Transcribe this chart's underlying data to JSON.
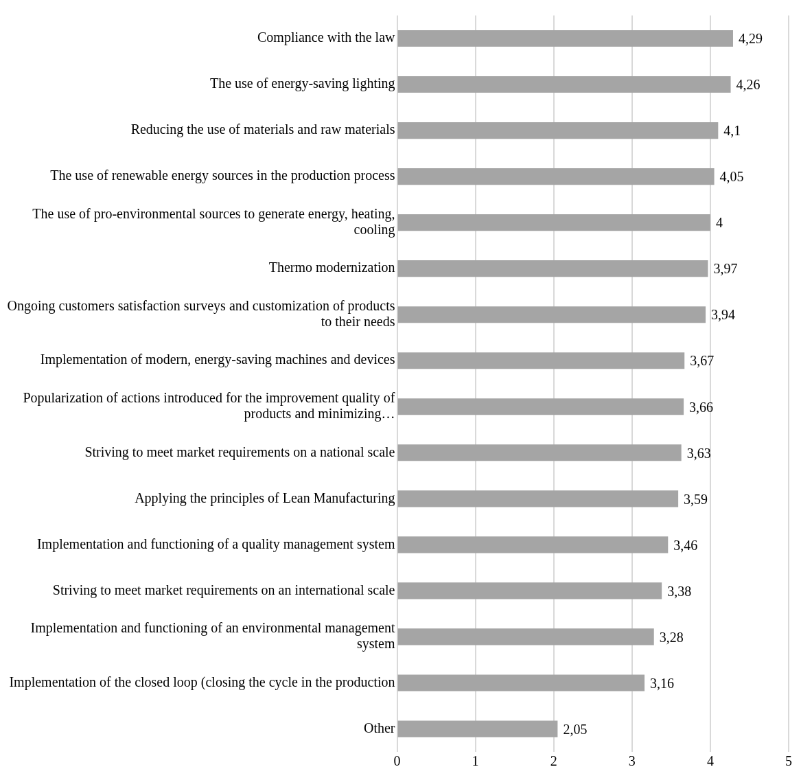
{
  "chart_data": {
    "type": "bar",
    "orientation": "horizontal",
    "categories": [
      "Compliance with the law",
      "The use of energy-saving lighting",
      "Reducing the use of materials and raw materials",
      "The use of renewable energy sources in the production process",
      "The use of pro-environmental sources to generate energy, heating, cooling",
      "Thermo modernization",
      "Ongoing customers satisfaction surveys and customization of products to their needs",
      "Implementation of modern, energy-saving machines and devices",
      "Popularization of actions introduced for the improvement quality of products and minimizing…",
      "Striving to meet market requirements on a national scale",
      "Applying the principles of Lean Manufacturing",
      "Implementation and functioning of a quality management system",
      "Striving to meet market requirements on an international scale",
      "Implementation and functioning of an environmental management system",
      "Implementation of the closed loop (closing the cycle in the production",
      "Other"
    ],
    "values": [
      4.29,
      4.26,
      4.1,
      4.05,
      4,
      3.97,
      3.94,
      3.67,
      3.66,
      3.63,
      3.59,
      3.46,
      3.38,
      3.28,
      3.16,
      2.05
    ],
    "value_labels": [
      "4,29",
      "4,26",
      "4,1",
      "4,05",
      "4",
      "3,97",
      "3,94",
      "3,67",
      "3,66",
      "3,63",
      "3,59",
      "3,46",
      "3,38",
      "3,28",
      "3,16",
      "2,05"
    ],
    "color": "#a5a5a5",
    "xlim": [
      0,
      5
    ],
    "xticks": [
      0,
      1,
      2,
      3,
      4,
      5
    ],
    "grid": "x",
    "legend": false
  }
}
